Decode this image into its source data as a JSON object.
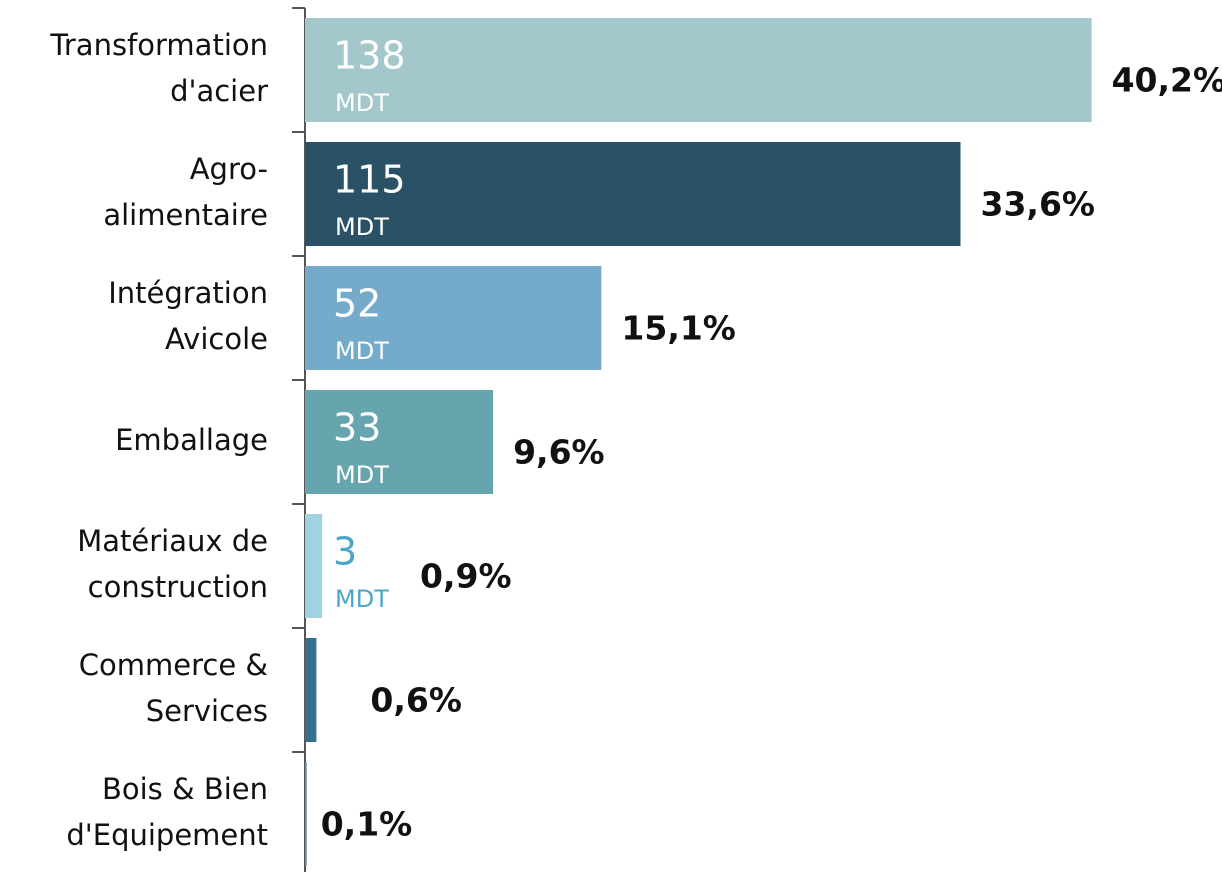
{
  "chart_data": {
    "type": "barh",
    "categories": [
      "Transformation\nd'acier",
      "Agro-\nalimentaire",
      "Intégration\nAvicole",
      "Emballage",
      "Matériaux de\nconstruction",
      "Commerce &\nServices",
      "Bois & Bien\nd'Equipement"
    ],
    "values": [
      138,
      115,
      52,
      33,
      3,
      2,
      0.3
    ],
    "value_labels": [
      "138",
      "115",
      "52",
      "33",
      "3",
      null,
      null
    ],
    "unit": "MDT",
    "share_labels": [
      "40,2%",
      "33,6%",
      "15,1%",
      "9,6%",
      "0,9%",
      "0,6%",
      "0,1%"
    ],
    "colors": [
      "#a4c7cc",
      "#2a5166",
      "#74abca",
      "#66a5ad",
      "#9fd3e2",
      "#33708c",
      "#5a8fa6"
    ],
    "xlim": [
      0,
      140
    ]
  }
}
